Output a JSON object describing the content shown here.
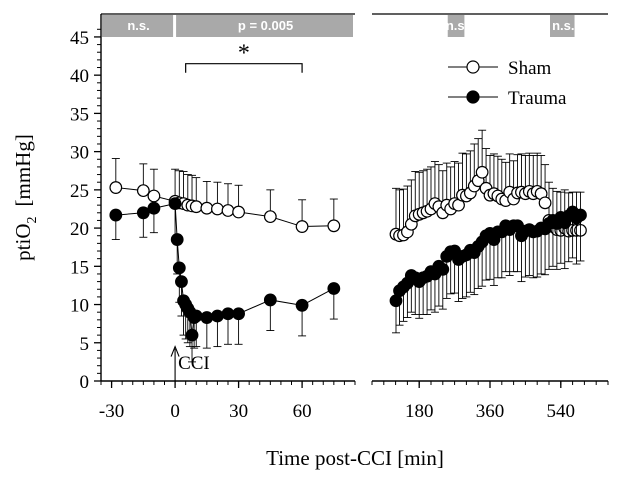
{
  "chart_data": {
    "type": "scatter",
    "xlabel": "Time post-CCI  [min]",
    "ylabel_main": "ptiO",
    "ylabel_sub": "2",
    "ylabel_unit": "[mmHg]",
    "ylim": [
      0,
      48
    ],
    "yticks": [
      0,
      5,
      10,
      15,
      20,
      25,
      30,
      35,
      40,
      45
    ],
    "grid": false,
    "legend_position": "top-right",
    "panels": [
      {
        "name": "early",
        "xlim": [
          -35,
          85
        ],
        "xticks": [
          -30,
          0,
          30,
          60
        ]
      },
      {
        "name": "late",
        "xlim": [
          60,
          660
        ],
        "xticks": [
          180,
          360,
          540
        ]
      }
    ],
    "band_colors": {
      "fill": "#a9a9a9",
      "text": "#ffffff"
    },
    "significance_bands": [
      {
        "panel": 0,
        "x_from": -35,
        "x_to": 0,
        "label": "n.s."
      },
      {
        "panel": 0,
        "x_from": 0,
        "x_to": 85,
        "label": "p = 0.005"
      },
      {
        "panel": 1,
        "x_from": 250,
        "x_to": 300,
        "label": "n.s."
      },
      {
        "panel": 1,
        "x_from": 510,
        "x_to": 580,
        "label": "n.s."
      }
    ],
    "bracket": {
      "x_from": 5,
      "x_to": 60,
      "y": 41.5,
      "label": "*"
    },
    "annotation": {
      "label": "CCI",
      "x": 0
    },
    "series": [
      {
        "name": "Sham",
        "marker": "open-circle",
        "x": [
          -28,
          -15,
          -10,
          0,
          2,
          4,
          6,
          8,
          10,
          15,
          20,
          25,
          30,
          45,
          60,
          75,
          121,
          130,
          140,
          150,
          160,
          170,
          180,
          190,
          200,
          210,
          220,
          230,
          240,
          250,
          260,
          270,
          280,
          290,
          300,
          310,
          320,
          330,
          340,
          350,
          360,
          370,
          380,
          390,
          400,
          410,
          420,
          430,
          440,
          450,
          460,
          470,
          480,
          490,
          500,
          510,
          520,
          530,
          540,
          550,
          560,
          570,
          580,
          590
        ],
        "y": [
          25.3,
          24.9,
          24.2,
          23.5,
          23.3,
          23.2,
          23.0,
          22.9,
          22.8,
          22.6,
          22.5,
          22.3,
          22.1,
          21.5,
          20.2,
          20.3,
          19.2,
          19.0,
          19.1,
          19.5,
          20.5,
          21.6,
          21.8,
          22.0,
          22.2,
          22.5,
          23.2,
          22.8,
          22.0,
          23.0,
          22.5,
          23.2,
          23.0,
          24.3,
          24.2,
          24.6,
          25.5,
          26.2,
          27.3,
          25.2,
          24.3,
          24.5,
          24.2,
          23.8,
          23.6,
          24.7,
          23.8,
          24.6,
          24.7,
          24.5,
          24.8,
          24.5,
          24.8,
          24.5,
          23.3,
          21.0,
          20.2,
          19.8,
          19.7,
          20.0,
          19.6,
          19.7,
          19.7,
          19.7
        ],
        "y_err": [
          3.8,
          3.5,
          3.5,
          4.2,
          4.2,
          4.2,
          4.0,
          4.0,
          3.8,
          3.5,
          3.5,
          3.5,
          3.5,
          3.5,
          3.5,
          3.5,
          6.0,
          6.0,
          6.0,
          6.0,
          5.8,
          5.8,
          5.5,
          5.5,
          5.5,
          5.5,
          5.5,
          5.5,
          5.5,
          5.5,
          5.5,
          5.5,
          5.5,
          5.5,
          5.5,
          5.5,
          5.5,
          5.5,
          5.5,
          5.2,
          5.2,
          5.2,
          5.2,
          5.2,
          5.0,
          5.0,
          5.0,
          5.0,
          5.0,
          5.0,
          5.0,
          5.0,
          5.0,
          5.0,
          5.0,
          5.0,
          5.0,
          5.0,
          5.0,
          5.0,
          5.0,
          5.0,
          5.0,
          5.0
        ]
      },
      {
        "name": "Trauma",
        "marker": "filled-circle",
        "x": [
          -28,
          -15,
          -10,
          0,
          1,
          2,
          3,
          4,
          5,
          6,
          7,
          8,
          9,
          10,
          15,
          20,
          25,
          30,
          45,
          60,
          75,
          121,
          130,
          140,
          150,
          160,
          170,
          180,
          190,
          200,
          210,
          220,
          230,
          240,
          250,
          260,
          270,
          280,
          290,
          300,
          310,
          320,
          330,
          340,
          350,
          360,
          370,
          380,
          390,
          400,
          410,
          420,
          430,
          440,
          450,
          460,
          470,
          480,
          490,
          500,
          510,
          520,
          530,
          540,
          550,
          560,
          570,
          580,
          590
        ],
        "y": [
          21.7,
          22.0,
          22.6,
          23.2,
          18.5,
          14.8,
          13.0,
          10.5,
          10.0,
          9.5,
          9.0,
          6.0,
          8.3,
          8.5,
          8.3,
          8.5,
          8.8,
          8.8,
          10.6,
          9.9,
          12.1,
          10.5,
          11.8,
          12.3,
          12.8,
          13.8,
          13.5,
          13.0,
          13.5,
          13.7,
          14.3,
          14.0,
          15.0,
          14.6,
          16.3,
          16.9,
          17.0,
          15.9,
          16.3,
          16.5,
          17.1,
          16.8,
          17.6,
          18.2,
          19.0,
          19.3,
          18.5,
          19.5,
          19.5,
          20.3,
          19.8,
          20.3,
          20.3,
          19.0,
          19.6,
          19.8,
          19.5,
          19.6,
          20.0,
          19.9,
          20.6,
          21.0,
          20.6,
          21.4,
          20.7,
          21.6,
          22.1,
          21.3,
          21.7
        ],
        "y_err": [
          3.2,
          3.2,
          3.2,
          4.5,
          4.5,
          4.5,
          4.5,
          4.5,
          4.5,
          4.5,
          4.5,
          3.5,
          4.0,
          4.0,
          4.0,
          4.0,
          4.0,
          4.0,
          4.0,
          4.0,
          4.0,
          4.2,
          4.5,
          4.5,
          4.5,
          4.8,
          4.8,
          4.8,
          4.8,
          5.0,
          5.0,
          5.0,
          5.2,
          5.2,
          5.5,
          5.5,
          5.5,
          5.5,
          5.5,
          5.5,
          5.5,
          5.5,
          5.5,
          5.8,
          5.8,
          6.0,
          6.0,
          6.0,
          6.0,
          6.0,
          6.0,
          6.0,
          6.0,
          6.0,
          6.0,
          6.0,
          6.0,
          6.0,
          6.0,
          6.0,
          6.0,
          6.0,
          6.0,
          6.0,
          6.0,
          6.0,
          6.0,
          6.0,
          6.0
        ]
      }
    ]
  }
}
